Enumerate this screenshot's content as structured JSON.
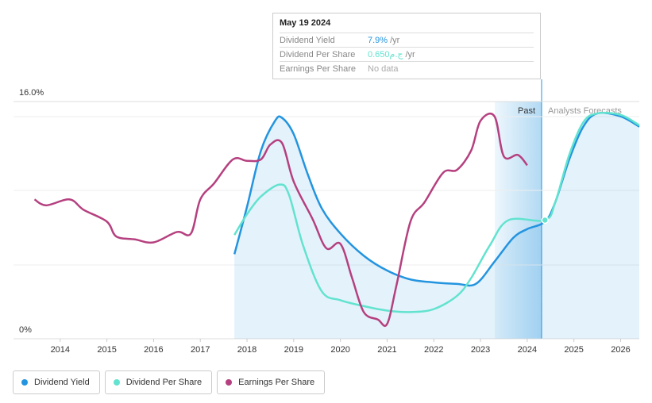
{
  "chart_data": {
    "type": "line",
    "xlim": [
      2013,
      2026.4
    ],
    "ylim": [
      0,
      16
    ],
    "xticks": [
      2014,
      2015,
      2016,
      2017,
      2018,
      2019,
      2020,
      2021,
      2022,
      2023,
      2024,
      2025,
      2026
    ],
    "yticks": [
      {
        "value": 0,
        "label": "0%"
      },
      {
        "value": 16,
        "label": "16.0%"
      }
    ],
    "annotations": [
      "Past",
      "Analysts Forecasts"
    ],
    "series": [
      {
        "name": "Dividend Yield",
        "color": "#2394df",
        "x": [
          2017.73,
          2018.0,
          2018.3,
          2018.6,
          2018.75,
          2019.0,
          2019.3,
          2019.6,
          2020.0,
          2020.5,
          2021.0,
          2021.5,
          2022.0,
          2022.5,
          2022.9,
          2023.3,
          2023.7,
          2024.0,
          2024.38,
          2024.6,
          2024.9,
          2025.2,
          2025.5,
          2026.0,
          2026.4
        ],
        "values": [
          5.7,
          8.9,
          12.7,
          14.7,
          14.9,
          13.8,
          11.1,
          8.8,
          7.1,
          5.6,
          4.6,
          4.0,
          3.8,
          3.7,
          3.7,
          5.2,
          6.8,
          7.4,
          7.9,
          9.2,
          12.1,
          14.3,
          15.2,
          15.0,
          14.3
        ]
      },
      {
        "name": "Dividend Per Share",
        "color": "#62e3cf",
        "x": [
          2017.73,
          2018.0,
          2018.3,
          2018.7,
          2018.9,
          2019.2,
          2019.6,
          2020.0,
          2020.5,
          2021.0,
          2021.5,
          2022.0,
          2022.5,
          2022.8,
          2023.2,
          2023.6,
          2024.38,
          2024.6,
          2024.9,
          2025.2,
          2025.5,
          2026.0,
          2026.4
        ],
        "values": [
          7.0,
          8.4,
          9.6,
          10.4,
          9.7,
          6.3,
          3.2,
          2.6,
          2.2,
          1.9,
          1.8,
          2.0,
          2.9,
          4.1,
          6.3,
          8.0,
          8.0,
          9.2,
          12.4,
          14.6,
          15.2,
          15.1,
          14.4
        ]
      },
      {
        "name": "Earnings Per Share",
        "color": "#b5407f",
        "x": [
          2013.45,
          2013.7,
          2014.2,
          2014.5,
          2015.0,
          2015.2,
          2015.6,
          2016.0,
          2016.5,
          2016.8,
          2017.0,
          2017.3,
          2017.7,
          2018.0,
          2018.3,
          2018.5,
          2018.75,
          2019.0,
          2019.4,
          2019.7,
          2020.0,
          2020.25,
          2020.5,
          2020.8,
          2021.0,
          2021.2,
          2021.5,
          2021.8,
          2022.2,
          2022.5,
          2022.8,
          2023.0,
          2023.3,
          2023.5,
          2023.8,
          2024.0
        ],
        "values": [
          9.4,
          9.0,
          9.4,
          8.7,
          7.9,
          6.9,
          6.7,
          6.5,
          7.2,
          7.1,
          9.4,
          10.5,
          12.1,
          12.0,
          12.1,
          13.1,
          13.2,
          10.6,
          8.1,
          6.1,
          6.4,
          4.1,
          1.8,
          1.3,
          1.0,
          3.6,
          7.9,
          9.2,
          11.2,
          11.4,
          12.7,
          14.7,
          15.0,
          12.3,
          12.4,
          11.7
        ]
      }
    ],
    "tooltip": {
      "date": "May 19 2024",
      "rows": [
        {
          "label": "Dividend Yield",
          "value": "7.9%",
          "unit": "/yr"
        },
        {
          "label": "Dividend Per Share",
          "value": "0.650ج.م",
          "unit": "/yr"
        },
        {
          "label": "Earnings Per Share",
          "value": "No data"
        }
      ]
    }
  }
}
